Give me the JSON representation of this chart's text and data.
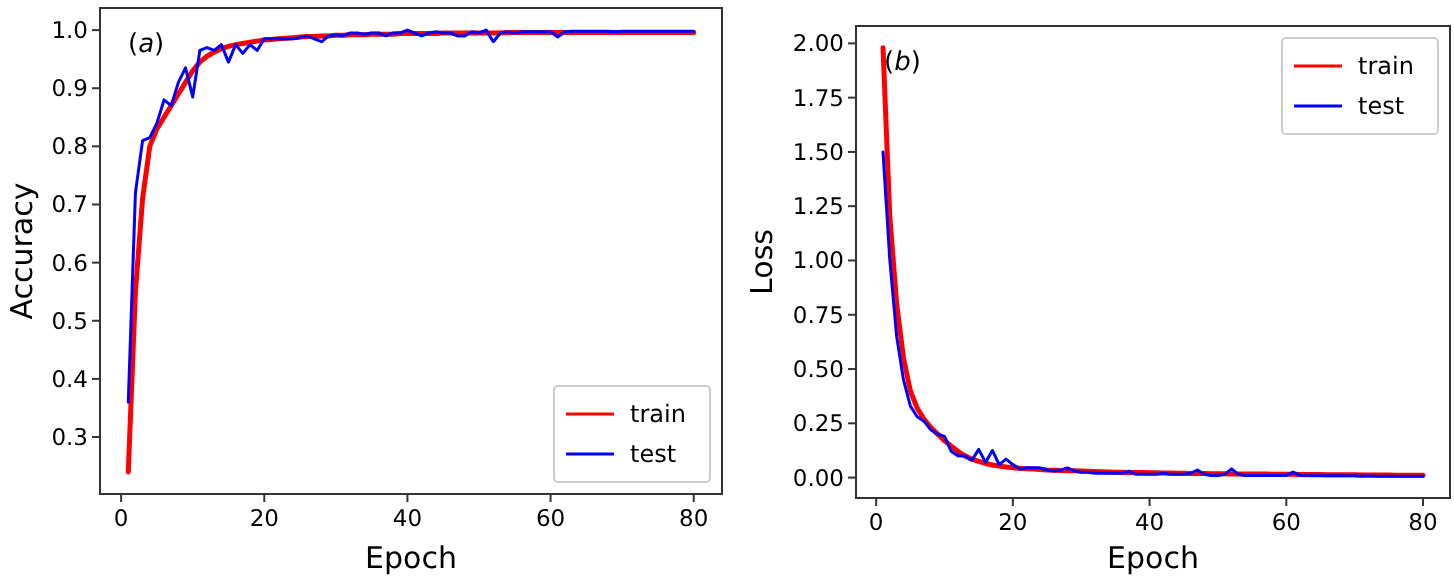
{
  "chart_data": [
    {
      "type": "line",
      "xlabel": "Epoch",
      "ylabel": "Accuracy",
      "annotations": [
        "(a)"
      ],
      "x": [
        1,
        2,
        3,
        4,
        5,
        6,
        7,
        8,
        9,
        10,
        11,
        12,
        13,
        14,
        15,
        16,
        17,
        18,
        19,
        20,
        21,
        22,
        23,
        24,
        25,
        26,
        27,
        28,
        29,
        30,
        31,
        32,
        33,
        34,
        35,
        36,
        37,
        38,
        39,
        40,
        41,
        42,
        43,
        44,
        45,
        46,
        47,
        48,
        49,
        50,
        51,
        52,
        53,
        54,
        55,
        56,
        57,
        58,
        59,
        60,
        61,
        62,
        63,
        64,
        65,
        66,
        67,
        68,
        69,
        70,
        71,
        72,
        73,
        74,
        75,
        76,
        77,
        78,
        79,
        80
      ],
      "xlim": [
        -2.95,
        83.95
      ],
      "xticks": [
        0,
        20,
        40,
        60,
        80
      ],
      "ylim": [
        0.202,
        1.038
      ],
      "yticks": [
        {
          "value": 0.3,
          "label": "0.3"
        },
        {
          "value": 0.4,
          "label": "0.4"
        },
        {
          "value": 0.5,
          "label": "0.5"
        },
        {
          "value": 0.6,
          "label": "0.6"
        },
        {
          "value": 0.7,
          "label": "0.7"
        },
        {
          "value": 0.8,
          "label": "0.8"
        },
        {
          "value": 0.9,
          "label": "0.9"
        },
        {
          "value": 1.0,
          "label": "1.0"
        }
      ],
      "legend": "bottom right",
      "grid": false,
      "series": [
        {
          "name": "train",
          "color": "#ff0000",
          "values": [
            0.24,
            0.55,
            0.71,
            0.8,
            0.83,
            0.85,
            0.87,
            0.89,
            0.91,
            0.93,
            0.945,
            0.955,
            0.962,
            0.968,
            0.972,
            0.975,
            0.977,
            0.979,
            0.981,
            0.983,
            0.984,
            0.985,
            0.986,
            0.987,
            0.988,
            0.989,
            0.989,
            0.99,
            0.99,
            0.991,
            0.991,
            0.992,
            0.992,
            0.992,
            0.993,
            0.993,
            0.993,
            0.993,
            0.994,
            0.994,
            0.994,
            0.994,
            0.994,
            0.994,
            0.995,
            0.995,
            0.995,
            0.995,
            0.995,
            0.995,
            0.995,
            0.995,
            0.995,
            0.996,
            0.996,
            0.996,
            0.996,
            0.996,
            0.996,
            0.996,
            0.996,
            0.996,
            0.996,
            0.996,
            0.996,
            0.996,
            0.996,
            0.996,
            0.996,
            0.996,
            0.996,
            0.996,
            0.996,
            0.996,
            0.996,
            0.996,
            0.996,
            0.996,
            0.996,
            0.996
          ]
        },
        {
          "name": "test",
          "color": "#0000ff",
          "values": [
            0.36,
            0.72,
            0.81,
            0.815,
            0.84,
            0.88,
            0.87,
            0.91,
            0.935,
            0.885,
            0.965,
            0.97,
            0.965,
            0.975,
            0.945,
            0.975,
            0.96,
            0.975,
            0.965,
            0.985,
            0.985,
            0.985,
            0.985,
            0.985,
            0.987,
            0.99,
            0.985,
            0.98,
            0.99,
            0.992,
            0.99,
            0.995,
            0.995,
            0.993,
            0.995,
            0.995,
            0.99,
            0.995,
            0.995,
            1.0,
            0.995,
            0.99,
            0.995,
            0.997,
            0.995,
            0.995,
            0.99,
            0.99,
            0.997,
            0.995,
            1.0,
            0.98,
            0.995,
            0.997,
            0.995,
            0.997,
            0.997,
            0.997,
            0.997,
            0.997,
            0.988,
            0.997,
            0.998,
            0.998,
            0.998,
            0.998,
            0.998,
            0.998,
            0.997,
            0.998,
            0.998,
            0.998,
            0.998,
            0.998,
            0.998,
            0.998,
            0.998,
            0.998,
            0.998,
            0.998
          ]
        }
      ]
    },
    {
      "type": "line",
      "xlabel": "Epoch",
      "ylabel": "Loss",
      "annotations": [
        "(b)"
      ],
      "x": [
        1,
        2,
        3,
        4,
        5,
        6,
        7,
        8,
        9,
        10,
        11,
        12,
        13,
        14,
        15,
        16,
        17,
        18,
        19,
        20,
        21,
        22,
        23,
        24,
        25,
        26,
        27,
        28,
        29,
        30,
        31,
        32,
        33,
        34,
        35,
        36,
        37,
        38,
        39,
        40,
        41,
        42,
        43,
        44,
        45,
        46,
        47,
        48,
        49,
        50,
        51,
        52,
        53,
        54,
        55,
        56,
        57,
        58,
        59,
        60,
        61,
        62,
        63,
        64,
        65,
        66,
        67,
        68,
        69,
        70,
        71,
        72,
        73,
        74,
        75,
        76,
        77,
        78,
        79,
        80
      ],
      "xlim": [
        -2.95,
        83.95
      ],
      "xticks": [
        0,
        20,
        40,
        60,
        80
      ],
      "ylim": [
        -0.094,
        2.08
      ],
      "yticks": [
        {
          "value": 0,
          "label": "0.00"
        },
        {
          "value": 0.25,
          "label": "0.25"
        },
        {
          "value": 0.5,
          "label": "0.50"
        },
        {
          "value": 0.75,
          "label": "0.75"
        },
        {
          "value": 1.0,
          "label": "1.00"
        },
        {
          "value": 1.25,
          "label": "1.25"
        },
        {
          "value": 1.5,
          "label": "1.50"
        },
        {
          "value": 1.75,
          "label": "1.75"
        },
        {
          "value": 2.0,
          "label": "2.00"
        }
      ],
      "legend": "top right",
      "grid": false,
      "series": [
        {
          "name": "train",
          "color": "#ff0000",
          "values": [
            1.98,
            1.2,
            0.8,
            0.55,
            0.4,
            0.32,
            0.27,
            0.23,
            0.2,
            0.17,
            0.145,
            0.12,
            0.1,
            0.085,
            0.075,
            0.065,
            0.058,
            0.053,
            0.049,
            0.045,
            0.043,
            0.041,
            0.039,
            0.037,
            0.035,
            0.034,
            0.033,
            0.032,
            0.031,
            0.03,
            0.029,
            0.028,
            0.027,
            0.026,
            0.025,
            0.025,
            0.024,
            0.023,
            0.023,
            0.022,
            0.022,
            0.021,
            0.021,
            0.02,
            0.02,
            0.019,
            0.019,
            0.019,
            0.018,
            0.018,
            0.018,
            0.017,
            0.017,
            0.017,
            0.016,
            0.016,
            0.016,
            0.015,
            0.015,
            0.015,
            0.015,
            0.014,
            0.014,
            0.014,
            0.014,
            0.013,
            0.013,
            0.013,
            0.013,
            0.013,
            0.012,
            0.012,
            0.012,
            0.012,
            0.012,
            0.011,
            0.011,
            0.011,
            0.011,
            0.011
          ]
        },
        {
          "name": "test",
          "color": "#0000ff",
          "values": [
            1.5,
            1.0,
            0.65,
            0.45,
            0.33,
            0.28,
            0.26,
            0.22,
            0.2,
            0.19,
            0.12,
            0.1,
            0.1,
            0.08,
            0.13,
            0.07,
            0.125,
            0.06,
            0.085,
            0.06,
            0.04,
            0.045,
            0.045,
            0.045,
            0.035,
            0.03,
            0.035,
            0.045,
            0.03,
            0.025,
            0.025,
            0.02,
            0.02,
            0.02,
            0.02,
            0.02,
            0.03,
            0.015,
            0.015,
            0.015,
            0.015,
            0.02,
            0.015,
            0.015,
            0.015,
            0.02,
            0.035,
            0.015,
            0.01,
            0.01,
            0.015,
            0.04,
            0.015,
            0.01,
            0.01,
            0.01,
            0.01,
            0.01,
            0.01,
            0.01,
            0.025,
            0.01,
            0.008,
            0.008,
            0.008,
            0.008,
            0.008,
            0.008,
            0.008,
            0.008,
            0.006,
            0.008,
            0.006,
            0.006,
            0.006,
            0.006,
            0.006,
            0.006,
            0.006,
            0.006
          ]
        }
      ]
    }
  ]
}
